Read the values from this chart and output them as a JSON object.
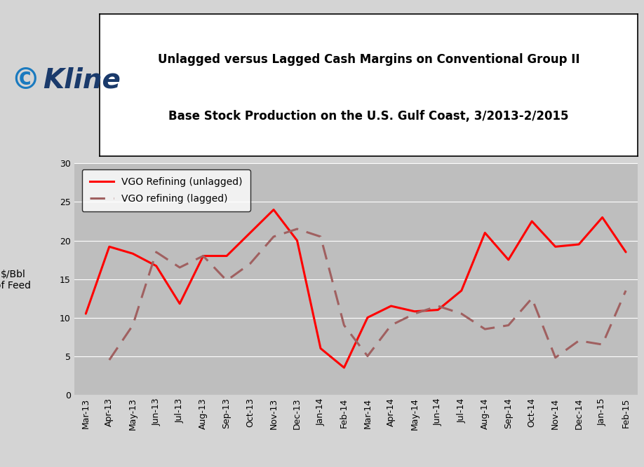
{
  "title_line1": "Unlagged versus Lagged Cash Margins on Conventional Group II",
  "title_line2": "Base Stock Production on the U.S. Gulf Coast, 3/2013-2/2015",
  "xlabel": "",
  "ylabel": "$/Bbl\nof Feed",
  "ylim": [
    0,
    30
  ],
  "yticks": [
    0,
    5,
    10,
    15,
    20,
    25,
    30
  ],
  "plot_bg_color": "#bebebe",
  "outer_bg_color": "#d4d4d4",
  "categories": [
    "Mar-13",
    "Apr-13",
    "May-13",
    "Jun-13",
    "Jul-13",
    "Aug-13",
    "Sep-13",
    "Oct-13",
    "Nov-13",
    "Dec-13",
    "Jan-14",
    "Feb-14",
    "Mar-14",
    "Apr-14",
    "May-14",
    "Jun-14",
    "Jul-14",
    "Aug-14",
    "Sep-14",
    "Oct-14",
    "Nov-14",
    "Dec-14",
    "Jan-15",
    "Feb-15"
  ],
  "unlagged": [
    10.5,
    19.2,
    18.3,
    16.7,
    11.8,
    18.0,
    18.0,
    21.0,
    24.0,
    20.0,
    6.0,
    3.5,
    10.0,
    11.5,
    10.8,
    11.0,
    13.5,
    21.0,
    17.5,
    22.5,
    19.2,
    19.5,
    23.0,
    18.5
  ],
  "lagged": [
    null,
    4.5,
    9.0,
    18.5,
    16.5,
    18.0,
    14.8,
    17.0,
    20.5,
    21.5,
    20.5,
    9.0,
    5.0,
    9.0,
    10.5,
    11.5,
    10.5,
    8.5,
    9.0,
    12.5,
    4.8,
    7.0,
    6.5,
    13.5
  ],
  "unlagged_color": "#ff0000",
  "lagged_color": "#a06060",
  "unlagged_label": "VGO Refining (unlagged)",
  "lagged_label": "VGO refining (lagged)",
  "grid_color": "#ffffff",
  "title_fontsize": 12,
  "tick_fontsize": 9,
  "ylabel_fontsize": 10
}
